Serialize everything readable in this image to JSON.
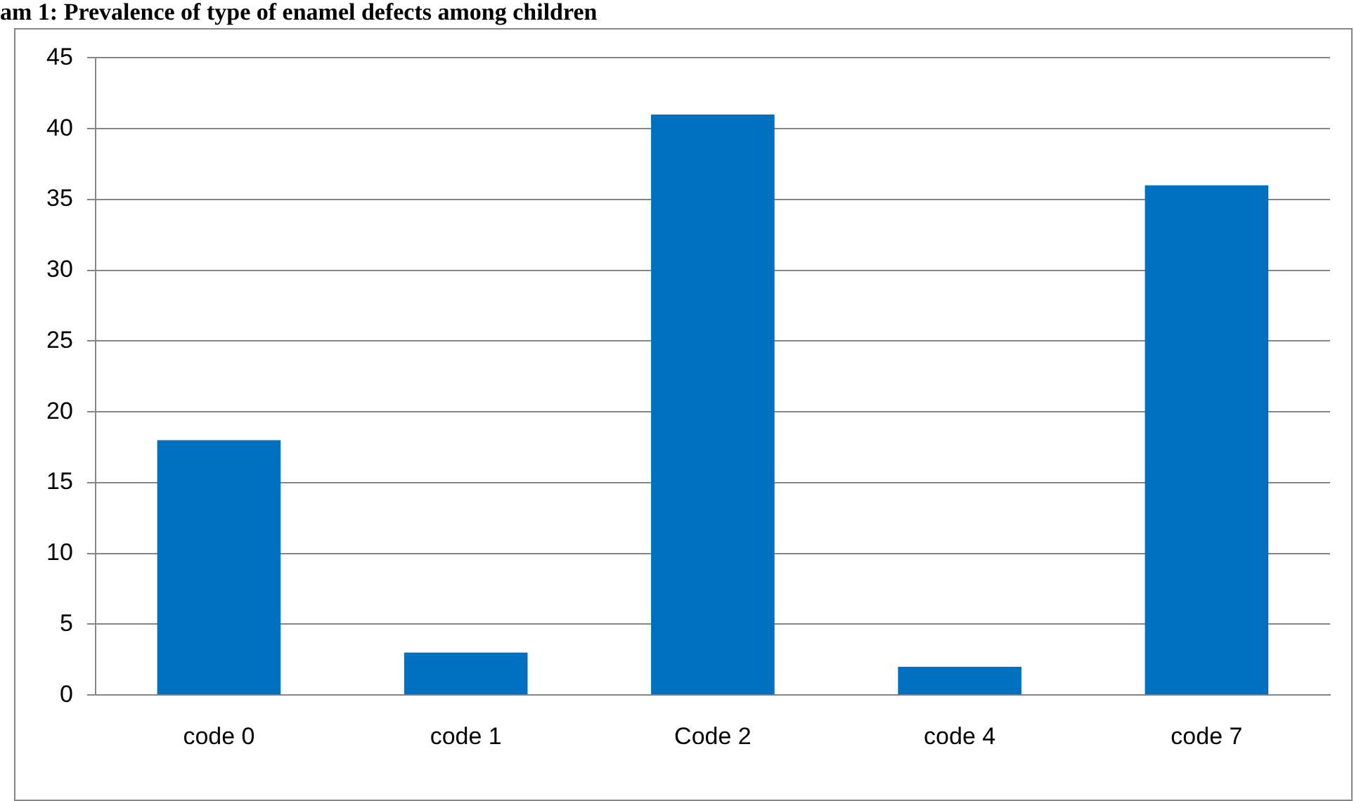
{
  "chart_data": {
    "type": "bar",
    "title": "am 1: Prevalence of type of enamel defects among children",
    "categories": [
      "code 0",
      "code 1",
      "Code 2",
      "code 4",
      "code 7"
    ],
    "values": [
      18,
      3,
      41,
      2,
      36
    ],
    "color": "#0070c0",
    "ylim": [
      0,
      45
    ],
    "yticks": [
      0,
      5,
      10,
      15,
      20,
      25,
      30,
      35,
      40,
      45
    ],
    "grid": "y",
    "legend": false
  }
}
